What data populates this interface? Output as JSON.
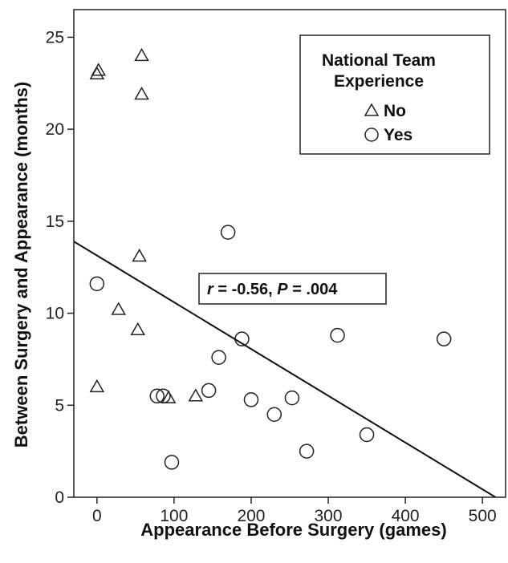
{
  "chart_data": {
    "type": "scatter",
    "title": "",
    "xlabel": "Appearance Before Surgery (games)",
    "ylabel_lines": [
      "Between Surgery and Appearance (months)"
    ],
    "xlim": [
      -30,
      530
    ],
    "ylim": [
      0,
      26.5
    ],
    "x_ticks": [
      0,
      100,
      200,
      300,
      400,
      500
    ],
    "y_ticks": [
      0,
      5,
      10,
      15,
      20,
      25
    ],
    "grid": false,
    "legend": {
      "title_lines": [
        "National Team",
        "Experience"
      ],
      "placement": "top-right",
      "entries": [
        {
          "label": "No",
          "marker": "triangle"
        },
        {
          "label": "Yes",
          "marker": "circle"
        }
      ]
    },
    "series": [
      {
        "name": "No",
        "marker": "triangle",
        "points": [
          [
            0,
            23.0
          ],
          [
            2,
            23.2
          ],
          [
            58,
            24.0
          ],
          [
            58,
            21.9
          ],
          [
            55,
            13.1
          ],
          [
            28,
            10.2
          ],
          [
            53,
            9.1
          ],
          [
            0,
            6.0
          ],
          [
            93,
            5.4
          ],
          [
            128,
            5.5
          ]
        ]
      },
      {
        "name": "Yes",
        "marker": "circle",
        "points": [
          [
            0,
            11.6
          ],
          [
            170,
            14.4
          ],
          [
            188,
            8.6
          ],
          [
            158,
            7.6
          ],
          [
            312,
            8.8
          ],
          [
            450,
            8.6
          ],
          [
            78,
            5.5
          ],
          [
            86,
            5.5
          ],
          [
            145,
            5.8
          ],
          [
            200,
            5.3
          ],
          [
            253,
            5.4
          ],
          [
            230,
            4.5
          ],
          [
            272,
            2.5
          ],
          [
            350,
            3.4
          ],
          [
            97,
            1.9
          ]
        ]
      }
    ],
    "fit_line": {
      "x": [
        -30,
        517
      ],
      "y": [
        13.9,
        0.0
      ]
    },
    "annotation": {
      "r_label": "r",
      "r_value": " = -0.56, ",
      "p_label": "P",
      "p_value": " = .004"
    }
  }
}
